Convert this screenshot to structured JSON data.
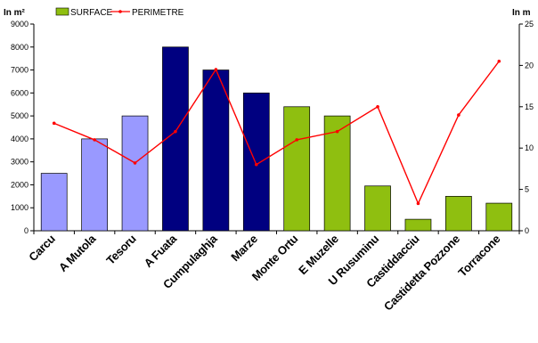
{
  "chart_data": {
    "type": "bar",
    "categories": [
      "Carcu",
      "A Mutola",
      "Tesoru",
      "A Fuata",
      "Cumpulaghja",
      "Marze",
      "Monte Ortu",
      "E Muzelle",
      "U Rusuminu",
      "Castiddacciu",
      "Castidetta Pozzone",
      "Torracone"
    ],
    "series": [
      {
        "name": "SURFACE",
        "kind": "bar",
        "axis": "left",
        "values": [
          2500,
          4000,
          5000,
          8000,
          7000,
          6000,
          5400,
          5000,
          1950,
          500,
          1500,
          1200
        ],
        "colors": [
          "#9999ff",
          "#9999ff",
          "#9999ff",
          "#000080",
          "#000080",
          "#000080",
          "#8fbf10",
          "#8fbf10",
          "#8fbf10",
          "#8fbf10",
          "#8fbf10",
          "#8fbf10"
        ]
      },
      {
        "name": "PERIMETRE",
        "kind": "line",
        "axis": "right",
        "color": "#ff0000",
        "values": [
          13,
          11,
          8.2,
          12,
          19.5,
          8,
          11,
          12,
          15,
          3.3,
          14,
          20.5
        ]
      }
    ],
    "ylabel_left": "In m²",
    "ylabel_right": "In m",
    "ylim_left": [
      0,
      9000
    ],
    "ylim_right": [
      0,
      25
    ],
    "yticks_left": [
      0,
      1000,
      2000,
      3000,
      4000,
      5000,
      6000,
      7000,
      8000,
      9000
    ],
    "yticks_right": [
      0,
      5,
      10,
      15,
      20,
      25
    ],
    "legend_position": "top-left",
    "grid": false
  }
}
